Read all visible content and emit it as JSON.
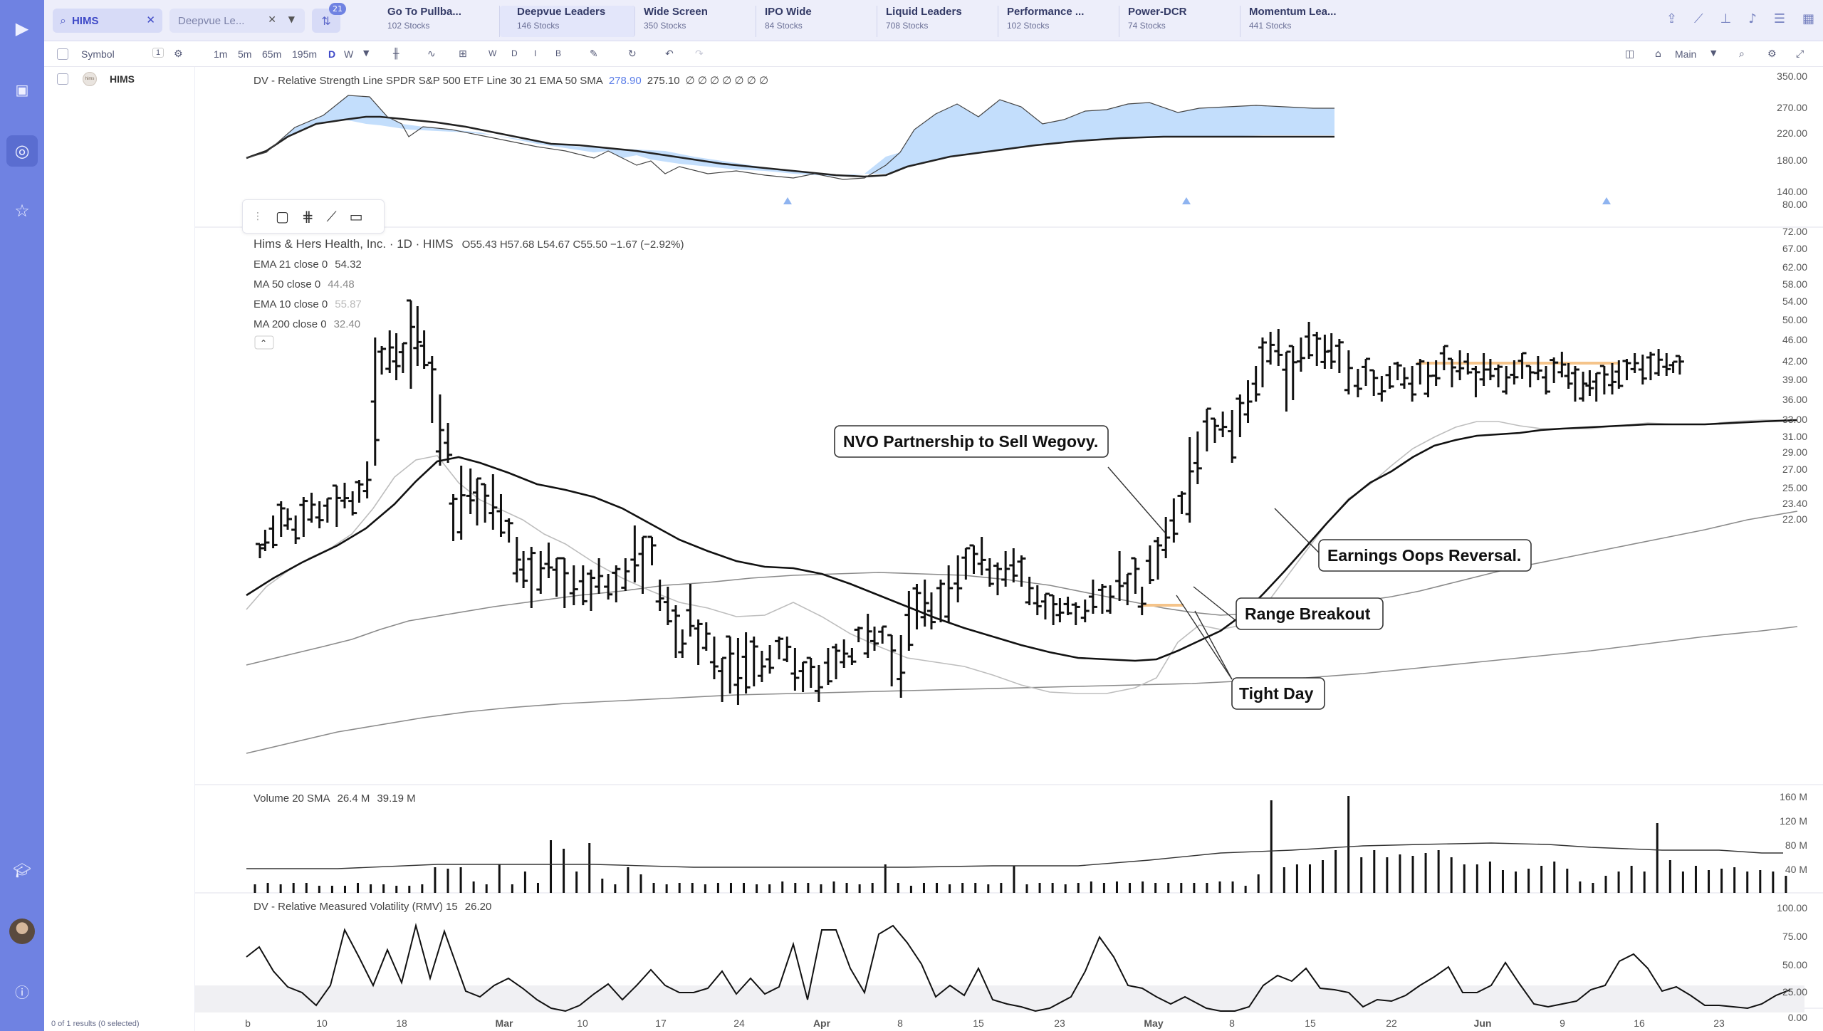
{
  "search": {
    "value": "HIMS",
    "icon": "search-icon"
  },
  "list_selector": {
    "value": "Deepvue Le..."
  },
  "filter": {
    "badge": "21"
  },
  "tabs": [
    {
      "title": "Go To Pullba...",
      "sub": "102 Stocks"
    },
    {
      "title": "Deepvue Leaders",
      "sub": "146 Stocks"
    },
    {
      "title": "Wide Screen",
      "sub": "350 Stocks"
    },
    {
      "title": "IPO Wide",
      "sub": "84 Stocks"
    },
    {
      "title": "Liquid Leaders",
      "sub": "708 Stocks"
    },
    {
      "title": "Performance ...",
      "sub": "102 Stocks"
    },
    {
      "title": "Power-DCR",
      "sub": "74 Stocks"
    },
    {
      "title": "Momentum Lea...",
      "sub": "441 Stocks"
    }
  ],
  "toolbar": {
    "symbol_label": "Symbol",
    "symbol_count": "1",
    "timeframes": [
      "1m",
      "5m",
      "65m",
      "195m",
      "D",
      "W"
    ],
    "periods": [
      "W",
      "D",
      "I",
      "B"
    ],
    "layout_label": "Main"
  },
  "watchlist": {
    "items": [
      {
        "symbol": "HIMS",
        "logo": "hims"
      }
    ],
    "status": "0 of 1 results (0 selected)"
  },
  "indicators": {
    "rs_line": {
      "label": "DV - Relative Strength Line SPDR S&P 500 ETF Line 30 21 EMA 50 SMA",
      "v1": "278.90",
      "v2": "275.10",
      "rest": "∅ ∅ ∅ ∅ ∅ ∅ ∅"
    },
    "main_title": "Hims & Hers Health, Inc. · 1D · HIMS",
    "ohlc": "O55.43 H57.68 L54.67 C55.50 −1.67 (−2.92%)",
    "ema21": {
      "label": "EMA 21 close 0",
      "value": "54.32"
    },
    "ma50": {
      "label": "MA 50 close 0",
      "value": "44.48"
    },
    "ema10": {
      "label": "EMA 10 close 0",
      "value": "55.87"
    },
    "ma200": {
      "label": "MA 200 close 0",
      "value": "32.40"
    },
    "volume": {
      "label": "Volume 20 SMA",
      "v1": "26.4 M",
      "v2": "39.19 M"
    },
    "rmv": {
      "label": "DV - Relative Measured Volatility (RMV) 15",
      "value": "26.20"
    }
  },
  "axis": {
    "rs_ticks": [
      "350.00",
      "270.00",
      "220.00",
      "180.00",
      "140.00"
    ],
    "price_ticks": [
      "80.00",
      "72.00",
      "67.00",
      "62.00",
      "58.00",
      "54.00",
      "50.00",
      "46.00",
      "42.00",
      "39.00",
      "36.00",
      "33.00",
      "31.00",
      "29.00",
      "27.00",
      "25.00",
      "23.40",
      "22.00"
    ],
    "vol_ticks": [
      "160 M",
      "120 M",
      "80 M",
      "40 M"
    ],
    "rmv_ticks": [
      "100.00",
      "75.00",
      "50.00",
      "25.00",
      "0.00"
    ],
    "date_ticks": [
      "b",
      "10",
      "18",
      "Mar",
      "10",
      "17",
      "24",
      "Apr",
      "8",
      "15",
      "23",
      "May",
      "8",
      "15",
      "22",
      "Jun",
      "9",
      "16",
      "23"
    ]
  },
  "callouts": {
    "nvo": "NVO Partnership to Sell Wegovy.",
    "earnings": "Earnings Oops Reversal.",
    "range": "Range Breakout",
    "tight": "Tight Day"
  },
  "colors": {
    "accent": "#6f82e2",
    "rs_fill": "#b9d8fb",
    "ema21": "#111111",
    "ema10": "#bdbdbd",
    "ma": "#8a8a8a",
    "pivot": "#f5c48a"
  }
}
